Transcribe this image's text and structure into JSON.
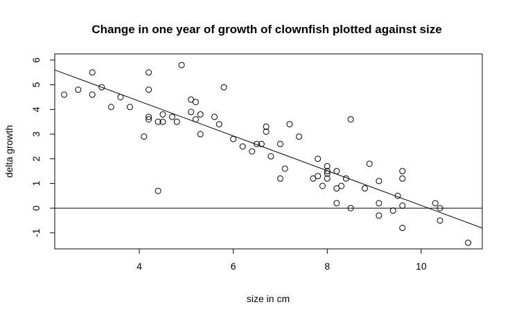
{
  "chart_data": {
    "type": "scatter",
    "title": "Change in one year of growth of clownfish plotted against size",
    "xlabel": "size in cm",
    "ylabel": "delta growth",
    "xlim": [
      2.2,
      11.3
    ],
    "ylim": [
      -1.65,
      6.25
    ],
    "x_ticks": [
      4,
      6,
      8,
      10
    ],
    "y_ticks": [
      -1,
      0,
      1,
      2,
      3,
      4,
      5,
      6
    ],
    "grid": false,
    "legend": "none",
    "points": [
      [
        2.4,
        4.6
      ],
      [
        2.7,
        4.8
      ],
      [
        3.0,
        5.5
      ],
      [
        3.0,
        4.6
      ],
      [
        3.2,
        4.9
      ],
      [
        3.4,
        4.1
      ],
      [
        3.6,
        4.5
      ],
      [
        3.8,
        4.1
      ],
      [
        4.1,
        2.9
      ],
      [
        4.2,
        5.5
      ],
      [
        4.2,
        4.8
      ],
      [
        4.2,
        3.7
      ],
      [
        4.2,
        3.6
      ],
      [
        4.4,
        3.5
      ],
      [
        4.4,
        0.7
      ],
      [
        4.5,
        3.8
      ],
      [
        4.5,
        3.5
      ],
      [
        4.7,
        3.7
      ],
      [
        4.8,
        3.5
      ],
      [
        4.9,
        5.8
      ],
      [
        5.1,
        4.4
      ],
      [
        5.1,
        3.9
      ],
      [
        5.2,
        4.3
      ],
      [
        5.2,
        3.6
      ],
      [
        5.3,
        3.8
      ],
      [
        5.3,
        3.0
      ],
      [
        5.6,
        3.7
      ],
      [
        5.7,
        3.4
      ],
      [
        5.8,
        4.9
      ],
      [
        6.0,
        2.8
      ],
      [
        6.2,
        2.5
      ],
      [
        6.4,
        2.3
      ],
      [
        6.5,
        2.6
      ],
      [
        6.6,
        2.6
      ],
      [
        6.7,
        3.3
      ],
      [
        6.7,
        3.1
      ],
      [
        6.8,
        2.1
      ],
      [
        7.0,
        2.6
      ],
      [
        7.0,
        1.2
      ],
      [
        7.1,
        1.6
      ],
      [
        7.2,
        3.4
      ],
      [
        7.4,
        2.9
      ],
      [
        7.7,
        1.2
      ],
      [
        7.8,
        2.0
      ],
      [
        7.8,
        1.3
      ],
      [
        7.9,
        0.9
      ],
      [
        8.0,
        1.7
      ],
      [
        8.0,
        1.5
      ],
      [
        8.0,
        1.4
      ],
      [
        8.0,
        1.2
      ],
      [
        8.2,
        1.5
      ],
      [
        8.2,
        0.8
      ],
      [
        8.2,
        0.2
      ],
      [
        8.3,
        0.9
      ],
      [
        8.4,
        1.2
      ],
      [
        8.5,
        3.6
      ],
      [
        8.5,
        0.0
      ],
      [
        8.8,
        0.8
      ],
      [
        8.9,
        1.8
      ],
      [
        9.1,
        1.1
      ],
      [
        9.1,
        0.2
      ],
      [
        9.1,
        -0.3
      ],
      [
        9.4,
        -0.1
      ],
      [
        9.5,
        0.5
      ],
      [
        9.6,
        1.5
      ],
      [
        9.6,
        1.2
      ],
      [
        9.6,
        0.1
      ],
      [
        9.6,
        -0.8
      ],
      [
        10.3,
        0.2
      ],
      [
        10.4,
        0.0
      ],
      [
        10.4,
        -0.5
      ],
      [
        11.0,
        -1.4
      ]
    ],
    "regression_line": {
      "intercept": 7.15,
      "slope": -0.704
    },
    "reference_line_y": 0
  }
}
